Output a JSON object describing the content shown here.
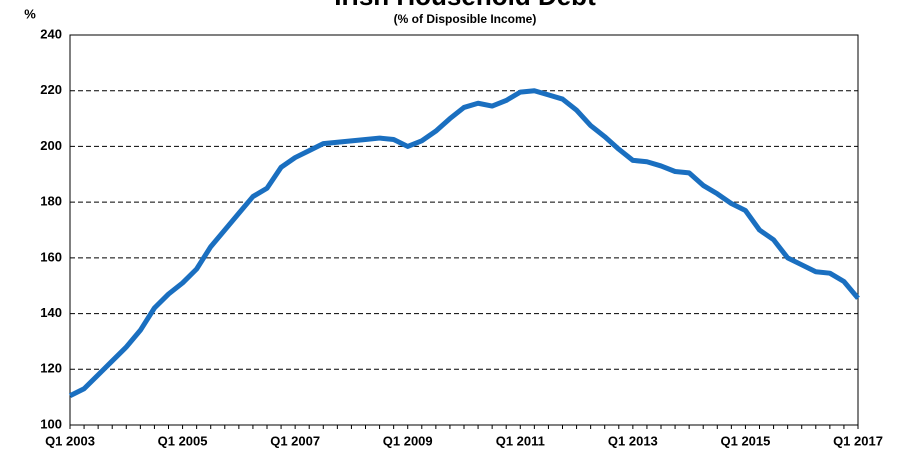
{
  "chart_data": {
    "type": "line",
    "title": "Irish Household Debt",
    "subtitle": "(% of Disposible Income)",
    "y_label": "%",
    "categories": [
      "Q1 2003",
      null,
      null,
      null,
      null,
      null,
      null,
      null,
      "Q1 2005",
      null,
      null,
      null,
      null,
      null,
      null,
      null,
      "Q1 2007",
      null,
      null,
      null,
      null,
      null,
      null,
      null,
      "Q1 2009",
      null,
      null,
      null,
      null,
      null,
      null,
      null,
      "Q1 2011",
      null,
      null,
      null,
      null,
      null,
      null,
      null,
      "Q1 2013",
      null,
      null,
      null,
      null,
      null,
      null,
      null,
      "Q1 2015",
      null,
      null,
      null,
      null,
      null,
      null,
      null,
      "Q1 2017"
    ],
    "series": [
      {
        "name": "Household debt",
        "color": "#1a6fc0",
        "values": [
          110.5,
          113,
          118,
          123,
          128,
          134,
          142,
          147,
          151,
          156,
          164,
          170,
          176,
          182,
          185,
          192.5,
          196,
          198.5,
          201,
          201.5,
          202,
          202.5,
          203,
          202.5,
          200,
          202,
          205.5,
          210,
          214,
          215.5,
          214.5,
          216.5,
          219.5,
          220,
          218.5,
          217,
          213,
          207.5,
          203.5,
          199,
          195,
          194.5,
          193,
          191,
          190.5,
          186,
          183,
          179.5,
          177,
          170,
          166.5,
          160,
          157.5,
          155,
          154.5,
          151.5,
          145.5
        ]
      }
    ],
    "ylim": [
      100,
      240
    ],
    "yticks": [
      100,
      120,
      140,
      160,
      180,
      200,
      220,
      240
    ],
    "grid": true
  }
}
